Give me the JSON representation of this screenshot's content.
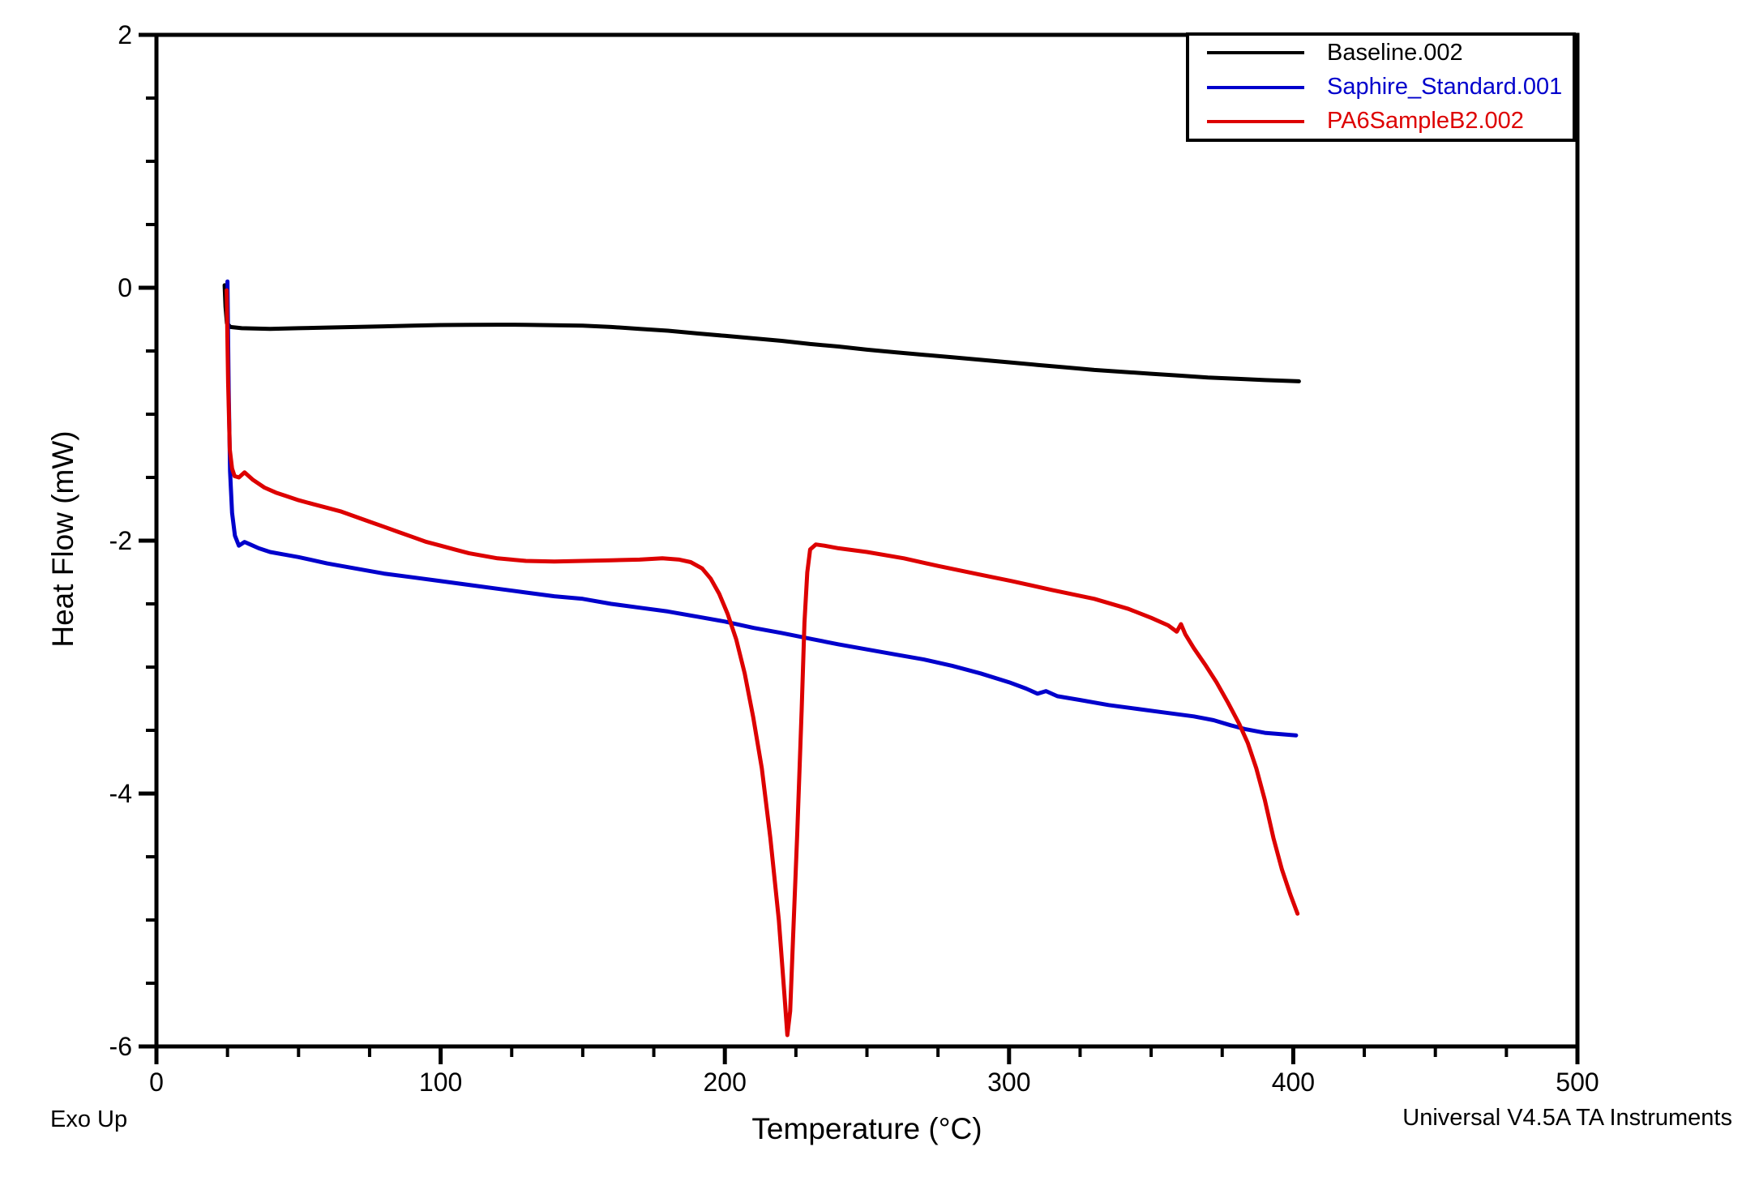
{
  "annotations": {
    "exo_up": "Exo Up",
    "watermark": "Universal V4.5A TA Instruments"
  },
  "chart_data": {
    "type": "line",
    "title": "",
    "xlabel": "Temperature (°C)",
    "ylabel": "Heat Flow (mW)",
    "xlim": [
      0,
      500
    ],
    "ylim": [
      -6,
      2
    ],
    "x_major_ticks": [
      0,
      100,
      200,
      300,
      400,
      500
    ],
    "x_minor_step": 25,
    "y_major_ticks": [
      2,
      0,
      -2,
      -4,
      -6
    ],
    "y_minor_step": 0.5,
    "grid": false,
    "legend_position": "top-right",
    "series": [
      {
        "name": "Baseline.002",
        "color": "#000000",
        "points": [
          [
            24,
            0.02
          ],
          [
            24.3,
            -0.15
          ],
          [
            24.8,
            -0.28
          ],
          [
            26,
            -0.31
          ],
          [
            30,
            -0.32
          ],
          [
            40,
            -0.325
          ],
          [
            50,
            -0.32
          ],
          [
            60,
            -0.315
          ],
          [
            70,
            -0.31
          ],
          [
            80,
            -0.305
          ],
          [
            90,
            -0.3
          ],
          [
            100,
            -0.295
          ],
          [
            110,
            -0.293
          ],
          [
            120,
            -0.292
          ],
          [
            130,
            -0.293
          ],
          [
            140,
            -0.296
          ],
          [
            150,
            -0.3
          ],
          [
            160,
            -0.31
          ],
          [
            170,
            -0.325
          ],
          [
            180,
            -0.34
          ],
          [
            190,
            -0.36
          ],
          [
            200,
            -0.38
          ],
          [
            210,
            -0.4
          ],
          [
            220,
            -0.42
          ],
          [
            230,
            -0.445
          ],
          [
            240,
            -0.465
          ],
          [
            250,
            -0.49
          ],
          [
            260,
            -0.51
          ],
          [
            270,
            -0.53
          ],
          [
            280,
            -0.55
          ],
          [
            290,
            -0.57
          ],
          [
            300,
            -0.59
          ],
          [
            310,
            -0.61
          ],
          [
            320,
            -0.63
          ],
          [
            330,
            -0.65
          ],
          [
            340,
            -0.665
          ],
          [
            350,
            -0.68
          ],
          [
            360,
            -0.695
          ],
          [
            370,
            -0.71
          ],
          [
            380,
            -0.72
          ],
          [
            390,
            -0.73
          ],
          [
            402,
            -0.74
          ]
        ]
      },
      {
        "name": "Saphire_Standard.001",
        "color": "#0000cc",
        "points": [
          [
            25,
            0.05
          ],
          [
            25.4,
            -0.8
          ],
          [
            25.9,
            -1.45
          ],
          [
            26.6,
            -1.78
          ],
          [
            27.6,
            -1.96
          ],
          [
            29,
            -2.04
          ],
          [
            31,
            -2.01
          ],
          [
            33,
            -2.03
          ],
          [
            36,
            -2.06
          ],
          [
            40,
            -2.09
          ],
          [
            45,
            -2.11
          ],
          [
            50,
            -2.13
          ],
          [
            60,
            -2.18
          ],
          [
            70,
            -2.22
          ],
          [
            80,
            -2.26
          ],
          [
            90,
            -2.29
          ],
          [
            100,
            -2.32
          ],
          [
            110,
            -2.35
          ],
          [
            120,
            -2.38
          ],
          [
            130,
            -2.41
          ],
          [
            140,
            -2.44
          ],
          [
            150,
            -2.46
          ],
          [
            160,
            -2.5
          ],
          [
            170,
            -2.53
          ],
          [
            180,
            -2.56
          ],
          [
            190,
            -2.6
          ],
          [
            200,
            -2.64
          ],
          [
            210,
            -2.69
          ],
          [
            220,
            -2.73
          ],
          [
            231,
            -2.78
          ],
          [
            240,
            -2.82
          ],
          [
            250,
            -2.86
          ],
          [
            260,
            -2.9
          ],
          [
            270,
            -2.94
          ],
          [
            280,
            -2.99
          ],
          [
            290,
            -3.05
          ],
          [
            300,
            -3.12
          ],
          [
            306,
            -3.17
          ],
          [
            310,
            -3.21
          ],
          [
            313,
            -3.19
          ],
          [
            317,
            -3.23
          ],
          [
            325,
            -3.26
          ],
          [
            335,
            -3.3
          ],
          [
            345,
            -3.33
          ],
          [
            355,
            -3.36
          ],
          [
            365,
            -3.39
          ],
          [
            372,
            -3.42
          ],
          [
            378,
            -3.46
          ],
          [
            383,
            -3.49
          ],
          [
            390,
            -3.52
          ],
          [
            401,
            -3.54
          ]
        ]
      },
      {
        "name": "PA6SampleB2.002",
        "color": "#dd0000",
        "points": [
          [
            24.7,
            -0.02
          ],
          [
            25.2,
            -0.75
          ],
          [
            25.8,
            -1.28
          ],
          [
            26.6,
            -1.43
          ],
          [
            27.5,
            -1.49
          ],
          [
            29,
            -1.5
          ],
          [
            31,
            -1.46
          ],
          [
            34,
            -1.52
          ],
          [
            38,
            -1.58
          ],
          [
            42,
            -1.62
          ],
          [
            46,
            -1.65
          ],
          [
            50,
            -1.68
          ],
          [
            55,
            -1.71
          ],
          [
            60,
            -1.74
          ],
          [
            65,
            -1.77
          ],
          [
            70,
            -1.81
          ],
          [
            75,
            -1.85
          ],
          [
            80,
            -1.89
          ],
          [
            85,
            -1.93
          ],
          [
            90,
            -1.97
          ],
          [
            95,
            -2.01
          ],
          [
            100,
            -2.04
          ],
          [
            105,
            -2.07
          ],
          [
            110,
            -2.1
          ],
          [
            115,
            -2.12
          ],
          [
            120,
            -2.14
          ],
          [
            125,
            -2.15
          ],
          [
            130,
            -2.16
          ],
          [
            140,
            -2.165
          ],
          [
            150,
            -2.16
          ],
          [
            160,
            -2.155
          ],
          [
            170,
            -2.15
          ],
          [
            178,
            -2.14
          ],
          [
            184,
            -2.15
          ],
          [
            188,
            -2.17
          ],
          [
            192,
            -2.22
          ],
          [
            195,
            -2.3
          ],
          [
            198,
            -2.42
          ],
          [
            201,
            -2.58
          ],
          [
            204,
            -2.78
          ],
          [
            207,
            -3.05
          ],
          [
            210,
            -3.4
          ],
          [
            213,
            -3.8
          ],
          [
            216,
            -4.35
          ],
          [
            219,
            -5.0
          ],
          [
            221,
            -5.6
          ],
          [
            222,
            -5.91
          ],
          [
            223,
            -5.72
          ],
          [
            224,
            -5.15
          ],
          [
            225.5,
            -4.3
          ],
          [
            227,
            -3.35
          ],
          [
            228,
            -2.65
          ],
          [
            229,
            -2.25
          ],
          [
            230,
            -2.07
          ],
          [
            232,
            -2.03
          ],
          [
            235,
            -2.04
          ],
          [
            240,
            -2.06
          ],
          [
            250,
            -2.09
          ],
          [
            263,
            -2.14
          ],
          [
            275,
            -2.2
          ],
          [
            290,
            -2.27
          ],
          [
            301,
            -2.32
          ],
          [
            315,
            -2.39
          ],
          [
            330,
            -2.46
          ],
          [
            342,
            -2.54
          ],
          [
            350,
            -2.61
          ],
          [
            356,
            -2.67
          ],
          [
            359,
            -2.72
          ],
          [
            360.5,
            -2.66
          ],
          [
            362,
            -2.74
          ],
          [
            365,
            -2.85
          ],
          [
            369,
            -2.98
          ],
          [
            373,
            -3.12
          ],
          [
            377,
            -3.28
          ],
          [
            381,
            -3.45
          ],
          [
            384,
            -3.6
          ],
          [
            387,
            -3.8
          ],
          [
            390,
            -4.05
          ],
          [
            393,
            -4.35
          ],
          [
            396,
            -4.6
          ],
          [
            399,
            -4.8
          ],
          [
            401.5,
            -4.95
          ]
        ]
      }
    ]
  }
}
